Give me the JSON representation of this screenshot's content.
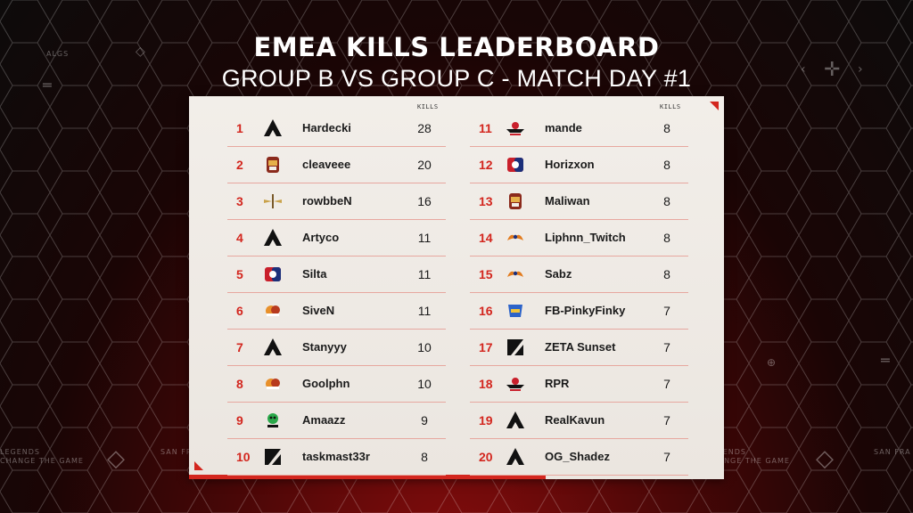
{
  "header": {
    "title": "EMEA KILLS LEADERBOARD",
    "subtitle": "GROUP B VS GROUP C - MATCH DAY #1"
  },
  "kills_label": "KILLS",
  "decor": {
    "algs": "ALGS",
    "tagline_left_1": "LEGENDS",
    "tagline_left_2": "CHANGE THE GAME",
    "tagline_right_1": "LEGENDS",
    "tagline_right_2": "CHANGE THE GAME",
    "sf_left": "SAN FR",
    "sf_right": "SAN FRA"
  },
  "colors": {
    "accent": "#d3261e",
    "panel": "#efebe6",
    "divider": "#e7a79f"
  },
  "left_column": [
    {
      "rank": "1",
      "name": "Hardecki",
      "kills": "28",
      "logo": "apex-icon"
    },
    {
      "rank": "2",
      "name": "cleaveee",
      "kills": "20",
      "logo": "alliance-crest-icon"
    },
    {
      "rank": "3",
      "name": "rowbbeN",
      "kills": "16",
      "logo": "winged-emblem-icon"
    },
    {
      "rank": "4",
      "name": "Artyco",
      "kills": "11",
      "logo": "apex-icon"
    },
    {
      "rank": "5",
      "name": "Silta",
      "kills": "11",
      "logo": "cube-logo-icon"
    },
    {
      "rank": "6",
      "name": "SiveN",
      "kills": "11",
      "logo": "orange-team-icon"
    },
    {
      "rank": "7",
      "name": "Stanyyy",
      "kills": "10",
      "logo": "apex-icon"
    },
    {
      "rank": "8",
      "name": "Goolphn",
      "kills": "10",
      "logo": "orange-team-icon"
    },
    {
      "rank": "9",
      "name": "Amaazz",
      "kills": "9",
      "logo": "green-mascot-icon"
    },
    {
      "rank": "10",
      "name": "taskmast33r",
      "kills": "8",
      "logo": "zeta-icon"
    }
  ],
  "right_column": [
    {
      "rank": "11",
      "name": "mande",
      "kills": "8",
      "logo": "red-wing-icon"
    },
    {
      "rank": "12",
      "name": "Horizxon",
      "kills": "8",
      "logo": "cube-logo-icon"
    },
    {
      "rank": "13",
      "name": "Maliwan",
      "kills": "8",
      "logo": "alliance-crest-icon"
    },
    {
      "rank": "14",
      "name": "Liphnn_Twitch",
      "kills": "8",
      "logo": "flame-bird-icon"
    },
    {
      "rank": "15",
      "name": "Sabz",
      "kills": "8",
      "logo": "flame-bird-icon"
    },
    {
      "rank": "16",
      "name": "FB-PinkyFinky",
      "kills": "7",
      "logo": "blue-badge-icon"
    },
    {
      "rank": "17",
      "name": "ZETA Sunset",
      "kills": "7",
      "logo": "zeta-icon"
    },
    {
      "rank": "18",
      "name": "RPR",
      "kills": "7",
      "logo": "red-wing-icon"
    },
    {
      "rank": "19",
      "name": "RealKavun",
      "kills": "7",
      "logo": "apex-icon"
    },
    {
      "rank": "20",
      "name": "OG_Shadez",
      "kills": "7",
      "logo": "apex-icon"
    }
  ]
}
